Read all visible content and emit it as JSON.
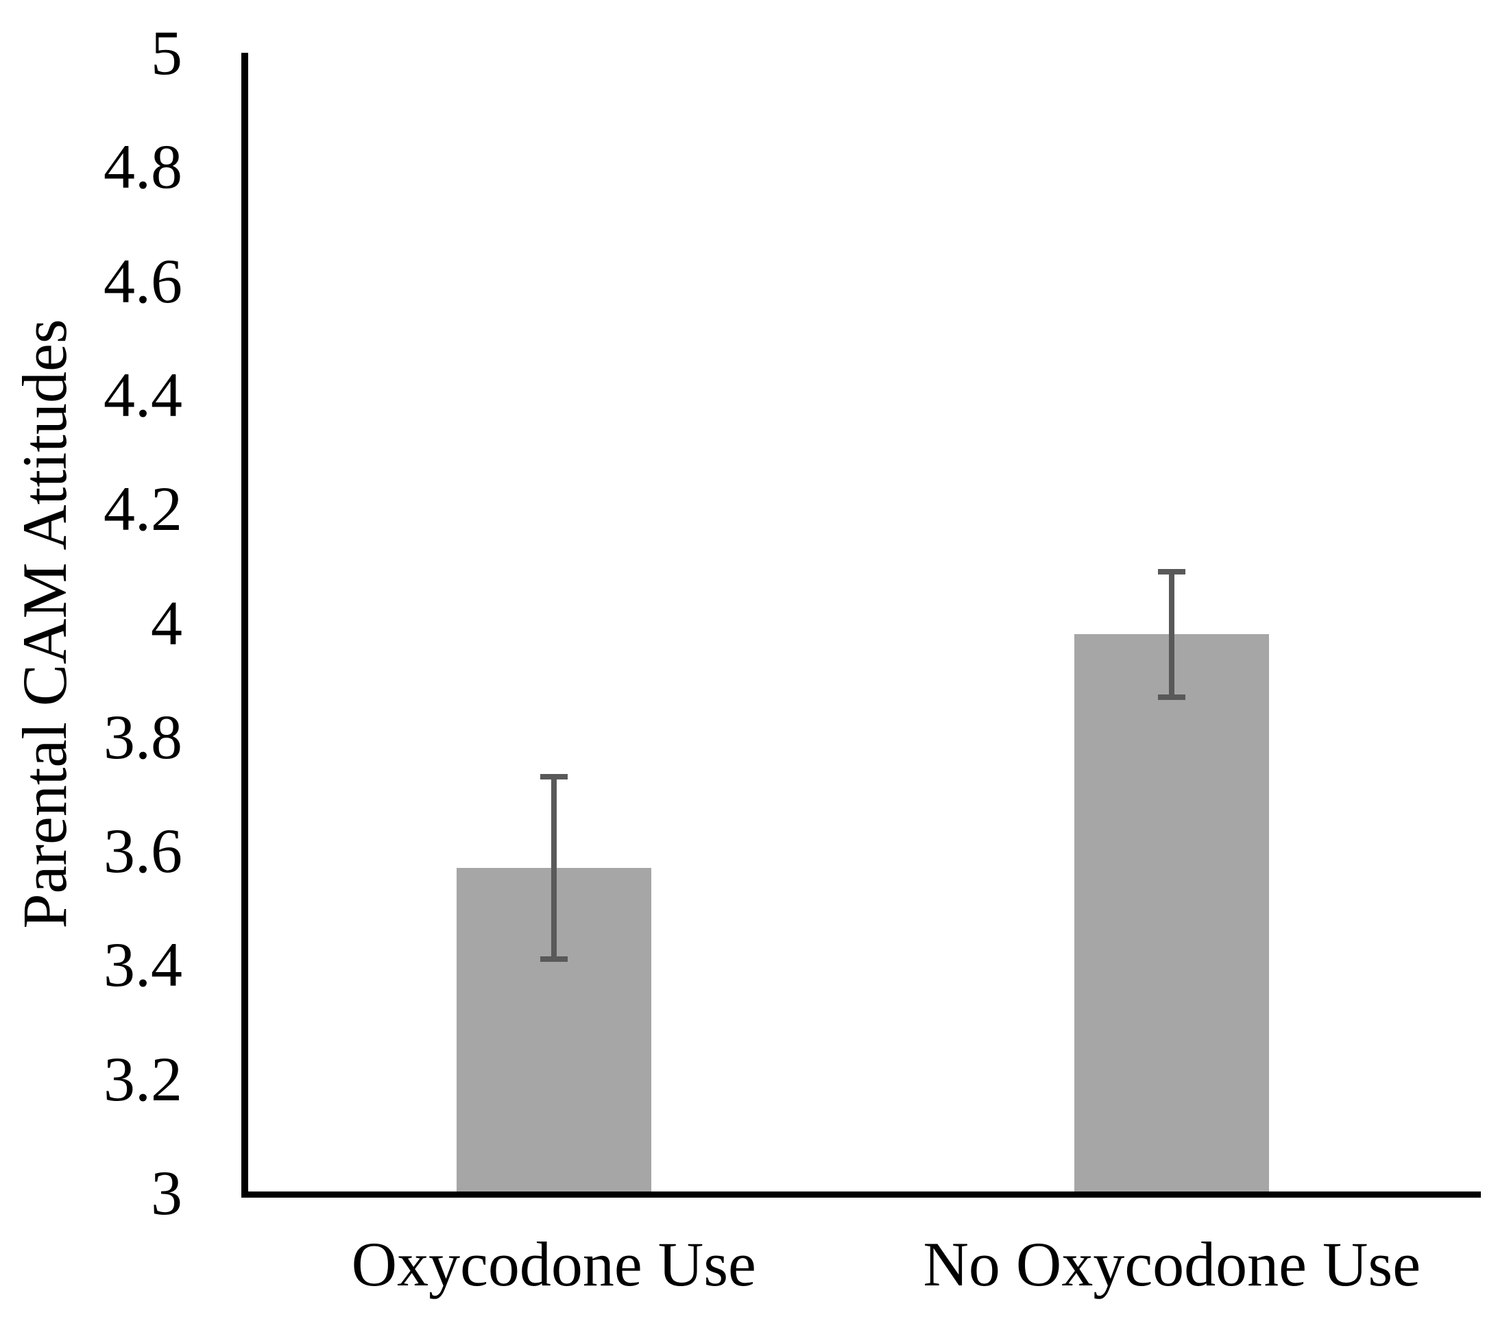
{
  "chart_data": {
    "type": "bar",
    "title": "",
    "categories": [
      "Oxycodone Use",
      "No Oxycodone Use"
    ],
    "values": [
      3.57,
      3.98
    ],
    "error_low": [
      3.41,
      3.87
    ],
    "error_high": [
      3.73,
      4.09
    ],
    "xlabel": "",
    "ylabel": "Parental CAM Attitudes",
    "ylim": [
      3,
      5
    ],
    "ytick_step": 0.2,
    "ytick_labels": [
      "3",
      "3.2",
      "3.4",
      "3.6",
      "3.8",
      "4",
      "4.2",
      "4.4",
      "4.6",
      "4.8",
      "5"
    ],
    "grid": false,
    "legend": false,
    "colors": {
      "bar_fill": "#a6a6a6",
      "error_bar": "#595959",
      "axis": "#000000",
      "text": "#000000",
      "background": "#ffffff"
    }
  }
}
